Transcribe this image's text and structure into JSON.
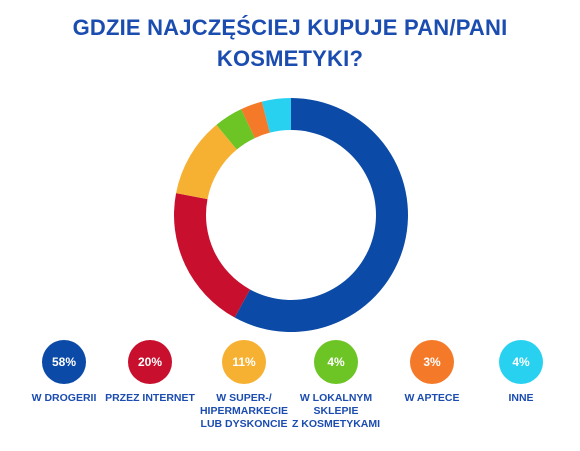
{
  "chart_data": {
    "type": "pie",
    "donut": true,
    "title_lines": [
      "GDZIE NAJCZĘŚCIEJ KUPUJE PAN/PANI",
      "KOSMETYKI?"
    ],
    "categories": [
      "W DROGERII",
      "PRZEZ INTERNET",
      "W SUPER-/\nHIPERMARKECIE\nLUB DYSKONCIE",
      "W LOKALNYM\nSKLEPIE\nZ KOSMETYKAMI",
      "W APTECE",
      "INNE"
    ],
    "values": [
      58,
      20,
      11,
      4,
      3,
      4
    ],
    "value_labels": [
      "58%",
      "20%",
      "11%",
      "4%",
      "3%",
      "4%"
    ],
    "colors": [
      "#0b4aa6",
      "#c8102e",
      "#f6b133",
      "#6cc425",
      "#f47a2a",
      "#27d1ef"
    ],
    "legend_placement": "bottom"
  }
}
